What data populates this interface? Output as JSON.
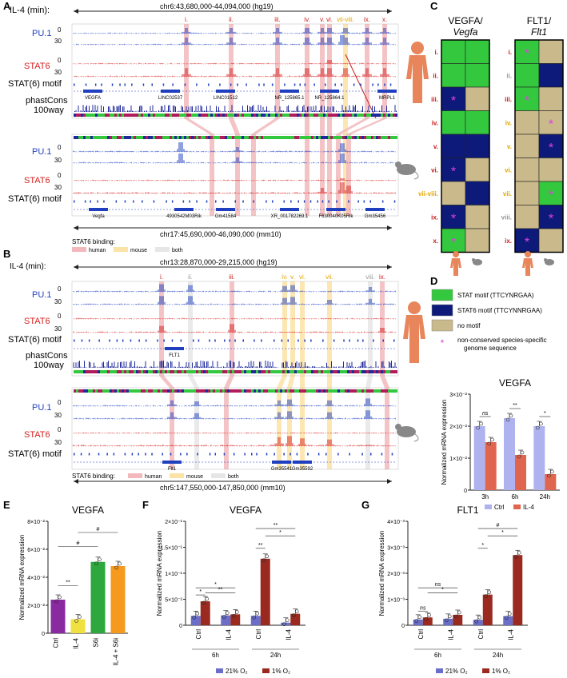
{
  "panel_letters": {
    "A": "A",
    "B": "B",
    "C": "C",
    "D": "D",
    "E": "E",
    "F": "F",
    "G": "G"
  },
  "colors": {
    "pu1": "#1f3fbf",
    "stat6": "#d62020",
    "human": "#f2b8bb",
    "mouse": "#fbe3a6",
    "both": "#e6e6e6",
    "stat_green": "#34c83e",
    "stat6_navy": "#0d1a7a",
    "nomotif": "#c9b98b",
    "star": "#e040e0",
    "ctrl": "#aeb2ee",
    "il4": "#e0654e",
    "purple": "#8a2aa0",
    "yellow": "#f0e040",
    "green": "#2ea83e",
    "orange": "#f59a1e",
    "o21": "#6a6ec8",
    "o1": "#9a2a20"
  },
  "A": {
    "il4_label": "IL-4 (min):",
    "human_coord": "chr6:43,680,000-44,094,000 (hg19)",
    "mouse_coord": "chr17:45,690,000-46,090,000 (mm10)",
    "track_pu1": "PU.1",
    "track_stat6": "STAT6",
    "track_motif": "STAT(6) motif",
    "track_phast1": "phastCons",
    "track_phast2": "100way",
    "t0": "0",
    "t30": "30",
    "site_labels": [
      "i.",
      "ii.",
      "iii.",
      "iv.",
      "v.",
      "vi.",
      "vii-viii.",
      "ix.",
      "x."
    ],
    "human_genes": [
      "VEGFA",
      "LINC02537",
      "LINC01512",
      "NR_125865.1",
      "NR_125864.1",
      "MRPL1"
    ],
    "mouse_genes": [
      "Vegfa",
      "4930542M03Rik",
      "Gm41584",
      "XR_001782269.1",
      "F630040K05Rik",
      "Gm35456"
    ],
    "legend_title": "STAT6 binding:",
    "legend": [
      "human",
      "mouse",
      "both"
    ]
  },
  "B": {
    "il4_label": "IL-4 (min):",
    "human_coord": "chr13:28,870,000-29,215,000 (hg19)",
    "mouse_coord": "chr5:147,550,000-147,850,000 (mm10)",
    "site_labels": [
      "i.",
      "ii.",
      "iii.",
      "iv.",
      "v.",
      "vi.",
      "vii.",
      "viii.",
      "ix."
    ],
    "human_genes": [
      "FLT1"
    ],
    "mouse_genes": [
      "Flt1",
      "Gm35541",
      "Gm35592"
    ],
    "legend_title": "STAT6 binding:",
    "legend": [
      "human",
      "mouse",
      "both"
    ]
  },
  "C": {
    "vegfa_title_1": "VEGFA/",
    "vegfa_title_2": "Vegfa",
    "flt1_title_1": "FLT1/",
    "flt1_title_2": "Flt1",
    "vegfa_rows": [
      {
        "label": "i.",
        "h": "green",
        "m": "green",
        "star": false,
        "star_col": "",
        "lc": "red"
      },
      {
        "label": "ii.",
        "h": "green",
        "m": "green",
        "star": false,
        "star_col": "",
        "lc": "red"
      },
      {
        "label": "iii.",
        "h": "navy",
        "m": "tan",
        "star": true,
        "star_col": "h",
        "lc": "red"
      },
      {
        "label": "iv.",
        "h": "green",
        "m": "green",
        "star": false,
        "star_col": "",
        "lc": "red"
      },
      {
        "label": "v.",
        "h": "navy",
        "m": "navy",
        "star": false,
        "star_col": "",
        "lc": "red"
      },
      {
        "label": "vi.",
        "h": "navy",
        "m": "tan",
        "star": true,
        "star_col": "h",
        "lc": "red"
      },
      {
        "label": "vii-viii.",
        "h": "tan",
        "m": "navy",
        "star": false,
        "star_col": "",
        "lc": "gold"
      },
      {
        "label": "ix.",
        "h": "navy",
        "m": "tan",
        "star": true,
        "star_col": "h",
        "lc": "red"
      },
      {
        "label": "x.",
        "h": "green",
        "m": "tan",
        "star": true,
        "star_col": "h",
        "lc": "red"
      }
    ],
    "flt1_rows": [
      {
        "label": "i.",
        "h": "green",
        "m": "tan",
        "star": true,
        "star_col": "h",
        "lc": "red"
      },
      {
        "label": "ii.",
        "h": "green",
        "m": "navy",
        "star": false,
        "star_col": "",
        "lc": "gray"
      },
      {
        "label": "iii.",
        "h": "green",
        "m": "tan",
        "star": true,
        "star_col": "h",
        "lc": "red"
      },
      {
        "label": "iv.",
        "h": "tan",
        "m": "tan",
        "star": true,
        "star_col": "m",
        "lc": "gold"
      },
      {
        "label": "v.",
        "h": "tan",
        "m": "navy",
        "star": true,
        "star_col": "m",
        "lc": "gold"
      },
      {
        "label": "vi.",
        "h": "tan",
        "m": "tan",
        "star": false,
        "star_col": "",
        "lc": "gold"
      },
      {
        "label": "vii.",
        "h": "tan",
        "m": "green",
        "star": true,
        "star_col": "m",
        "lc": "gold"
      },
      {
        "label": "viii.",
        "h": "tan",
        "m": "navy",
        "star": true,
        "star_col": "m",
        "lc": "gray"
      },
      {
        "label": "ix.",
        "h": "navy",
        "m": "tan",
        "star": true,
        "star_col": "h",
        "lc": "red"
      }
    ],
    "legend": [
      {
        "key": "green",
        "text": "STAT motif (TTCYNRGAA)"
      },
      {
        "key": "navy",
        "text": "STAT6 motif (TTCYNNRGAA)"
      },
      {
        "key": "tan",
        "text": "no motif"
      }
    ],
    "star_legend_1": "non-conserved species-specific",
    "star_legend_2": "genome sequence"
  },
  "chart_data": [
    {
      "id": "D",
      "type": "bar",
      "title": "VEGFA",
      "ylabel": "Normalized mRNA expression",
      "categories": [
        "3h",
        "6h",
        "24h"
      ],
      "series": [
        {
          "name": "Ctrl",
          "values": [
            0.02,
            0.0225,
            0.02
          ]
        },
        {
          "name": "IL-4",
          "values": [
            0.015,
            0.011,
            0.005
          ]
        }
      ],
      "ylim": [
        0,
        0.03
      ],
      "yticks": [
        0,
        0.01,
        0.02,
        0.03
      ],
      "ytick_labels": [
        "0",
        "1×10⁻²",
        "2×10⁻²",
        "3×10⁻²"
      ],
      "significance": [
        "ns",
        "**",
        "*"
      ],
      "legend": [
        "Ctrl",
        "IL-4"
      ]
    },
    {
      "id": "E",
      "type": "bar",
      "title": "VEGFA",
      "ylabel": "Normalized mRNA expression",
      "categories": [
        "Ctrl",
        "IL-4",
        "S6i",
        "IL-4 + S6i"
      ],
      "values": [
        0.024,
        0.01,
        0.051,
        0.048
      ],
      "ylim": [
        0,
        0.08
      ],
      "yticks": [
        0,
        0.02,
        0.04,
        0.06,
        0.08
      ],
      "ytick_labels": [
        "0",
        "2×10⁻²",
        "4×10⁻²",
        "6×10⁻²",
        "8×10⁻²"
      ],
      "significance": [
        "**",
        "#",
        "#"
      ]
    },
    {
      "id": "F",
      "type": "bar",
      "title": "VEGFA",
      "ylabel": "Normalized mRNA expression",
      "groups": [
        "6h",
        "24h"
      ],
      "categories": [
        "Ctrl",
        "IL-4",
        "Ctrl",
        "IL-4"
      ],
      "series": [
        {
          "name": "21% O₂",
          "values": [
            0.018,
            0.019,
            0.018,
            0.005
          ]
        },
        {
          "name": "1% O₂",
          "values": [
            0.046,
            0.021,
            0.128,
            0.022
          ]
        }
      ],
      "ylim": [
        0,
        0.2
      ],
      "yticks": [
        0,
        0.05,
        0.1,
        0.15,
        0.2
      ],
      "ytick_labels": [
        "0",
        "5×10⁻²",
        "1×10⁻¹",
        "1.5×10⁻¹",
        "2×10⁻¹"
      ],
      "significance": [
        "*",
        "*",
        "**",
        "**",
        "*",
        "**"
      ],
      "legend": [
        "21% O₂",
        "1% O₂"
      ]
    },
    {
      "id": "G",
      "type": "bar",
      "title": "FLT1",
      "ylabel": "Normalized mRNA expression",
      "groups": [
        "6h",
        "24h"
      ],
      "categories": [
        "Ctrl",
        "IL-4",
        "Ctrl",
        "IL-4"
      ],
      "series": [
        {
          "name": "21% O₂",
          "values": [
            0.00022,
            0.00025,
            0.00021,
            0.00035
          ]
        },
        {
          "name": "1% O₂",
          "values": [
            0.0003,
            0.0004,
            0.00118,
            0.0027
          ]
        }
      ],
      "ylim": [
        0,
        0.004
      ],
      "yticks": [
        0,
        0.001,
        0.002,
        0.003,
        0.004
      ],
      "ytick_labels": [
        "0",
        "1×10⁻³",
        "2×10⁻³",
        "3×10⁻³",
        "4×10⁻³"
      ],
      "significance": [
        "ns",
        "ns",
        "*",
        "*",
        "*",
        "#"
      ],
      "legend": [
        "21% O₂",
        "1% O₂"
      ]
    }
  ]
}
